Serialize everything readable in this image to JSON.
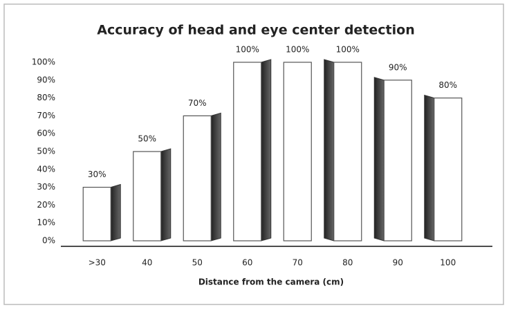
{
  "chart_data": {
    "type": "bar",
    "title": "Accuracy of head and eye center detection",
    "x_label": "Distance from the camera (cm)",
    "categories": [
      ">30",
      "40",
      "50",
      "60",
      "70",
      "80",
      "90",
      "100"
    ],
    "values": [
      30,
      50,
      70,
      100,
      100,
      100,
      90,
      80
    ],
    "value_labels": [
      "30%",
      "50%",
      "70%",
      "100%",
      "100%",
      "100%",
      "90%",
      "80%"
    ],
    "color": "#ffffff",
    "ylim": [
      0,
      100
    ],
    "yticks": [
      {
        "value": 0,
        "label": "0%"
      },
      {
        "value": 10,
        "label": "10%"
      },
      {
        "value": 20,
        "label": "20%"
      },
      {
        "value": 30,
        "label": "30%"
      },
      {
        "value": 40,
        "label": "40%"
      },
      {
        "value": 50,
        "label": "50%"
      },
      {
        "value": 60,
        "label": "60%"
      },
      {
        "value": 70,
        "label": "70%"
      },
      {
        "value": 80,
        "label": "80%"
      },
      {
        "value": 90,
        "label": "90%"
      },
      {
        "value": 100,
        "label": "100%"
      }
    ],
    "grid": false
  }
}
